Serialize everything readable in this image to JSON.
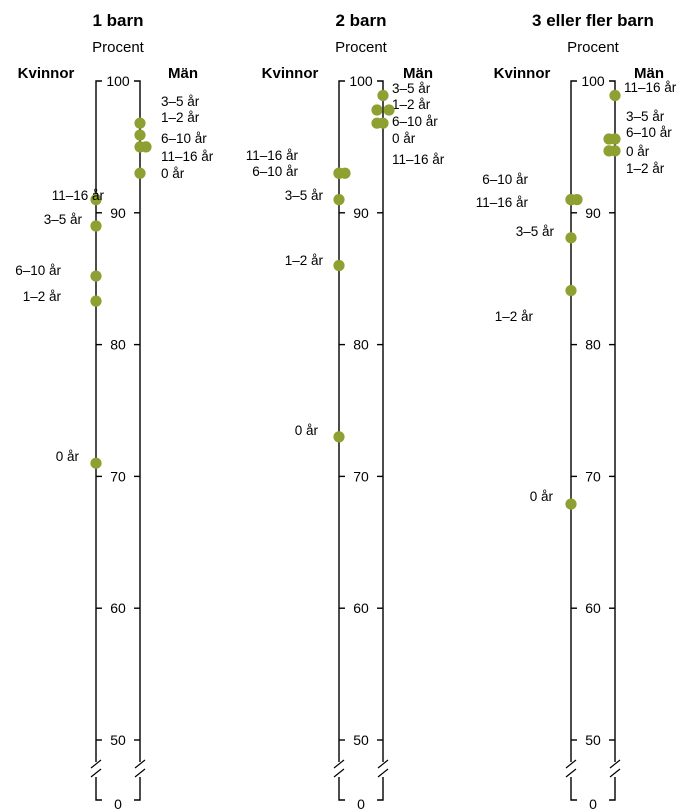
{
  "chart_data": [
    {
      "type": "scatter",
      "title": "1 barn",
      "ylabel": "Procent",
      "left_label": "Kvinnor",
      "right_label": "Män",
      "ylim": [
        0,
        100
      ],
      "axis_break": [
        0,
        47
      ],
      "yticks": [
        "0",
        "50",
        "60",
        "70",
        "80",
        "90",
        "100"
      ],
      "series": [
        {
          "name": "Kvinnor",
          "points": [
            {
              "label": "11–16 år",
              "value": 91.0
            },
            {
              "label": "3–5 år",
              "value": 89.0
            },
            {
              "label": "6–10 år",
              "value": 85.2
            },
            {
              "label": "1–2 år",
              "value": 83.3
            },
            {
              "label": "0 år",
              "value": 71.0
            }
          ]
        },
        {
          "name": "Män",
          "points": [
            {
              "label": "3–5 år",
              "value": 96.8
            },
            {
              "label": "1–2 år",
              "value": 95.9
            },
            {
              "label": "6–10 år",
              "value": 95.0
            },
            {
              "label": "11–16 år",
              "value": 95.0
            },
            {
              "label": "0 år",
              "value": 93.0
            }
          ]
        }
      ]
    },
    {
      "type": "scatter",
      "title": "2 barn",
      "ylabel": "Procent",
      "left_label": "Kvinnor",
      "right_label": "Män",
      "ylim": [
        0,
        100
      ],
      "axis_break": [
        0,
        47
      ],
      "yticks": [
        "0",
        "50",
        "60",
        "70",
        "80",
        "90",
        "100"
      ],
      "series": [
        {
          "name": "Kvinnor",
          "points": [
            {
              "label": "11–16 år",
              "value": 93.0
            },
            {
              "label": "6–10 år",
              "value": 93.0
            },
            {
              "label": "3–5 år",
              "value": 91.0
            },
            {
              "label": "1–2 år",
              "value": 86.0
            },
            {
              "label": "0 år",
              "value": 73.0
            }
          ]
        },
        {
          "name": "Män",
          "points": [
            {
              "label": "3–5 år",
              "value": 98.9
            },
            {
              "label": "1–2 år",
              "value": 97.8
            },
            {
              "label": "6–10 år",
              "value": 96.8
            },
            {
              "label": "0 år",
              "value": 97.8
            },
            {
              "label": "11–16 år",
              "value": 96.8
            }
          ]
        }
      ]
    },
    {
      "type": "scatter",
      "title": "3 eller fler barn",
      "ylabel": "Procent",
      "left_label": "Kvinnor",
      "right_label": "Män",
      "ylim": [
        0,
        100
      ],
      "axis_break": [
        0,
        47
      ],
      "yticks": [
        "0",
        "50",
        "60",
        "70",
        "80",
        "90",
        "100"
      ],
      "series": [
        {
          "name": "Kvinnor",
          "points": [
            {
              "label": "6–10 år",
              "value": 91.0
            },
            {
              "label": "11–16 år",
              "value": 91.0
            },
            {
              "label": "3–5 år",
              "value": 88.1
            },
            {
              "label": "1–2 år",
              "value": 84.1
            },
            {
              "label": "0 år",
              "value": 67.9
            }
          ]
        },
        {
          "name": "Män",
          "points": [
            {
              "label": "11–16 år",
              "value": 98.9
            },
            {
              "label": "3–5 år",
              "value": 95.6
            },
            {
              "label": "6–10 år",
              "value": 95.6
            },
            {
              "label": "0 år",
              "value": 94.7
            },
            {
              "label": "1–2 år",
              "value": 94.7
            }
          ]
        }
      ]
    }
  ],
  "colors": {
    "marker": "#8fa032",
    "axis": "#000000"
  }
}
